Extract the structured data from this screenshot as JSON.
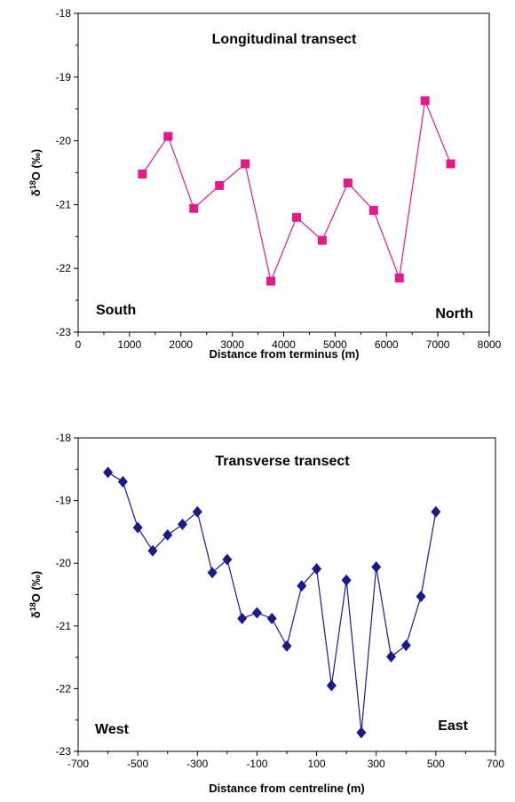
{
  "chart_data": [
    {
      "type": "line",
      "title": "Longitudinal transect",
      "xlabel": "Distance from terminus (m)",
      "ylabel": "δ18O (‰)",
      "ylabel_parts": {
        "prefix": "δ",
        "sup": "18",
        "suffix": "O (‰)"
      },
      "xlim": [
        0,
        8000
      ],
      "ylim": [
        -23,
        -18
      ],
      "xticks": [
        0,
        1000,
        2000,
        3000,
        4000,
        5000,
        6000,
        7000,
        8000
      ],
      "yticks": [
        -18,
        -19,
        -20,
        -21,
        -22,
        -23
      ],
      "grid": false,
      "marker": "square",
      "color": "#e6198a",
      "annotations": {
        "left": "South",
        "right": "North"
      },
      "series": [
        {
          "x": [
            1250,
            1750,
            2250,
            2750,
            3250,
            3750,
            4250,
            4750,
            5250,
            5750,
            6250,
            6750,
            7250
          ],
          "y": [
            -20.52,
            -19.93,
            -21.06,
            -20.7,
            -20.36,
            -22.2,
            -21.2,
            -21.56,
            -20.66,
            -21.09,
            -22.15,
            -19.37,
            -20.36
          ]
        }
      ]
    },
    {
      "type": "line",
      "title": "Transverse transect",
      "xlabel": "Distance from centreline (m)",
      "ylabel": "δ18O (‰)",
      "ylabel_parts": {
        "prefix": "δ",
        "sup": "18",
        "suffix": "O (‰)"
      },
      "xlim": [
        -700,
        700
      ],
      "ylim": [
        -23,
        -18
      ],
      "xticks": [
        -700,
        -500,
        -300,
        -100,
        100,
        300,
        500,
        700
      ],
      "yticks": [
        -18,
        -19,
        -20,
        -21,
        -22,
        -23
      ],
      "grid": false,
      "marker": "diamond",
      "color": "#1a1a8c",
      "annotations": {
        "left": "West",
        "right": "East"
      },
      "series": [
        {
          "x": [
            -600,
            -550,
            -500,
            -450,
            -400,
            -350,
            -300,
            -250,
            -200,
            -150,
            -100,
            -50,
            0,
            50,
            100,
            150,
            200,
            250,
            300,
            350,
            400,
            450,
            500
          ],
          "y": [
            -18.55,
            -18.7,
            -19.43,
            -19.8,
            -19.55,
            -19.38,
            -19.18,
            -20.15,
            -19.94,
            -20.88,
            -20.79,
            -20.88,
            -21.32,
            -20.36,
            -20.09,
            -21.95,
            -20.27,
            -22.7,
            -20.06,
            -21.49,
            -21.31,
            -20.53,
            -19.18
          ]
        }
      ]
    }
  ]
}
